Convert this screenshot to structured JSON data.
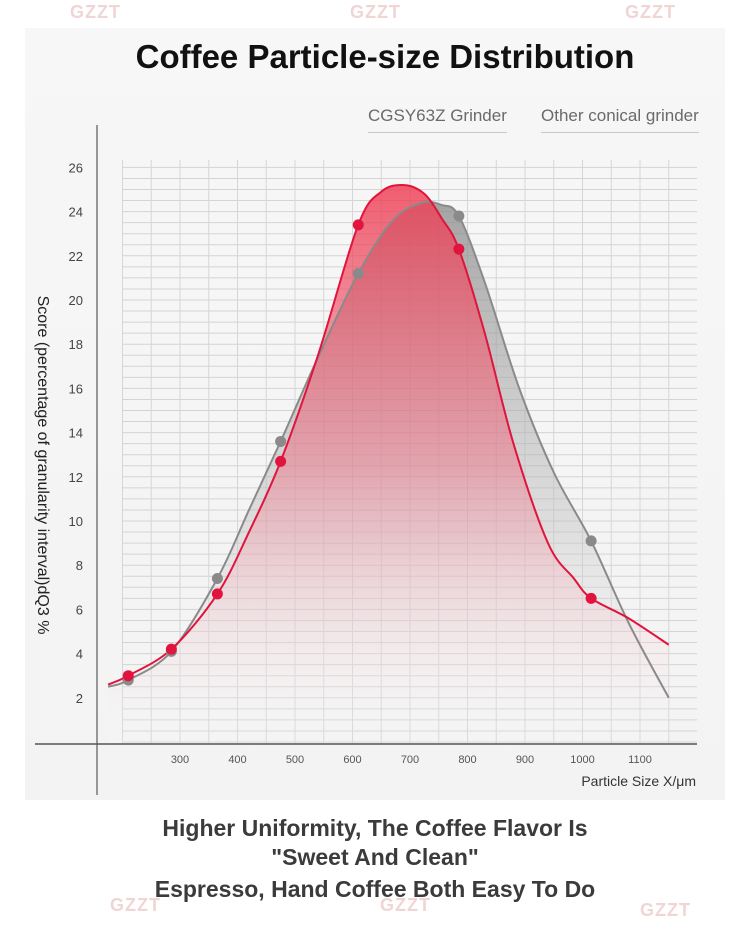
{
  "header": {
    "title": "Coffee Particle-size Distribution"
  },
  "legend": {
    "cgsy": "CGSY63Z Grinder",
    "other": "Other conical grinder"
  },
  "captions": {
    "line1": "Higher Uniformity, The Coffee Flavor Is",
    "line2": "\"Sweet And Clean\"",
    "line3": "Espresso, Hand Coffee Both Easy To Do"
  },
  "watermark": "GZZT",
  "colors": {
    "cgsy": "#e0143c",
    "other": "#8a8a8a"
  },
  "chart_data": {
    "type": "line",
    "title": "Coffee Particle-size Distribution",
    "xlabel": "Particle Size X/μm",
    "ylabel": "Score (percentage of granularity interval)dQ3 %",
    "xlim": [
      90,
      1150
    ],
    "ylim": [
      0,
      26
    ],
    "x_ticks": [
      300,
      400,
      500,
      600,
      700,
      800,
      900,
      1000,
      1100
    ],
    "y_ticks": [
      2,
      4,
      6,
      8,
      10,
      12,
      14,
      16,
      18,
      20,
      22,
      24,
      26
    ],
    "grid": true,
    "legend_position": "top-right",
    "series": [
      {
        "name": "CGSY63Z Grinder",
        "color": "#e0143c",
        "points": [
          [
            210,
            3.0
          ],
          [
            285,
            4.2
          ],
          [
            365,
            6.7
          ],
          [
            475,
            12.7
          ],
          [
            610,
            23.4
          ],
          [
            785,
            22.3
          ],
          [
            1015,
            6.5
          ]
        ],
        "curve": [
          [
            175,
            2.6
          ],
          [
            210,
            3.0
          ],
          [
            285,
            4.2
          ],
          [
            365,
            6.7
          ],
          [
            420,
            9.5
          ],
          [
            475,
            12.7
          ],
          [
            540,
            17.5
          ],
          [
            610,
            23.4
          ],
          [
            650,
            24.9
          ],
          [
            690,
            25.2
          ],
          [
            725,
            24.8
          ],
          [
            755,
            23.7
          ],
          [
            785,
            22.3
          ],
          [
            830,
            18.5
          ],
          [
            880,
            13.5
          ],
          [
            940,
            9.0
          ],
          [
            985,
            7.4
          ],
          [
            1015,
            6.5
          ],
          [
            1080,
            5.6
          ],
          [
            1150,
            4.4
          ]
        ]
      },
      {
        "name": "Other conical grinder",
        "color": "#8a8a8a",
        "points": [
          [
            210,
            2.8
          ],
          [
            285,
            4.1
          ],
          [
            365,
            7.4
          ],
          [
            475,
            13.6
          ],
          [
            610,
            21.2
          ],
          [
            785,
            23.8
          ],
          [
            1015,
            9.1
          ]
        ],
        "curve": [
          [
            175,
            2.5
          ],
          [
            210,
            2.8
          ],
          [
            285,
            4.1
          ],
          [
            365,
            7.4
          ],
          [
            420,
            10.5
          ],
          [
            475,
            13.6
          ],
          [
            540,
            17.4
          ],
          [
            610,
            21.2
          ],
          [
            670,
            23.6
          ],
          [
            720,
            24.4
          ],
          [
            755,
            24.3
          ],
          [
            785,
            23.8
          ],
          [
            830,
            20.8
          ],
          [
            890,
            16.0
          ],
          [
            950,
            12.2
          ],
          [
            1015,
            9.1
          ],
          [
            1080,
            5.4
          ],
          [
            1150,
            2.0
          ]
        ]
      }
    ]
  }
}
